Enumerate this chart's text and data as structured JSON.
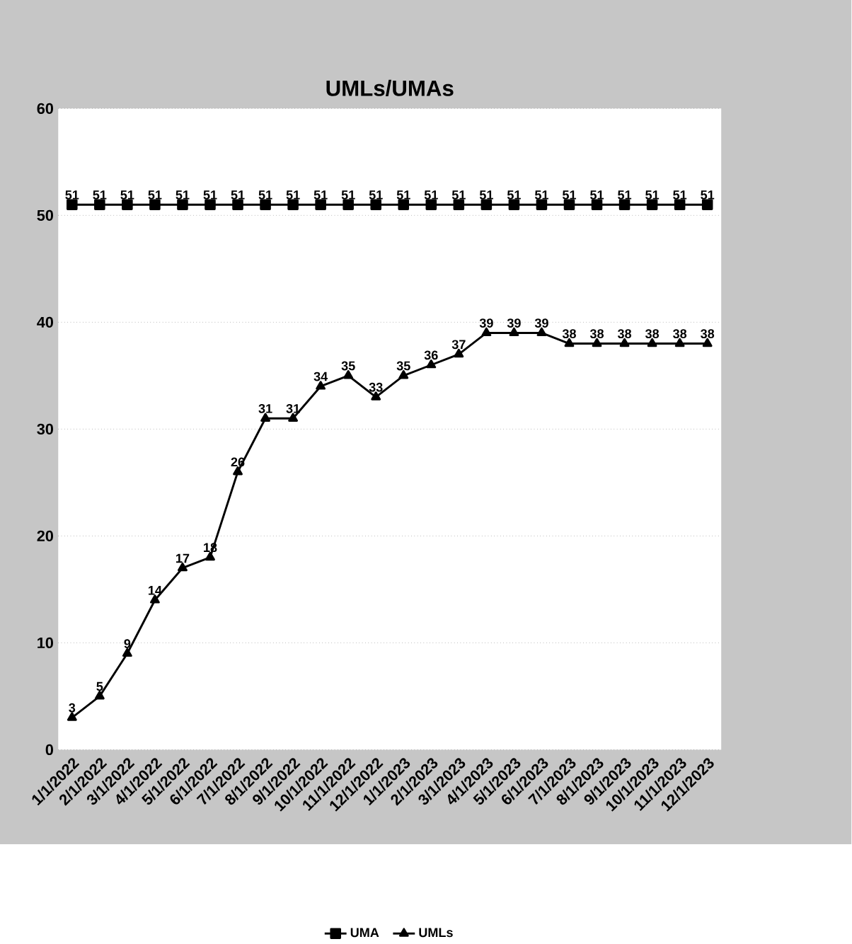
{
  "chart_data": {
    "type": "line",
    "title": "UMLs/UMAs",
    "categories": [
      "1/1/2022",
      "2/1/2022",
      "3/1/2022",
      "4/1/2022",
      "5/1/2022",
      "6/1/2022",
      "7/1/2022",
      "8/1/2022",
      "9/1/2022",
      "10/1/2022",
      "11/1/2022",
      "12/1/2022",
      "1/1/2023",
      "2/1/2023",
      "3/1/2023",
      "4/1/2023",
      "5/1/2023",
      "6/1/2023",
      "7/1/2023",
      "8/1/2023",
      "9/1/2023",
      "10/1/2023",
      "11/1/2023",
      "12/1/2023"
    ],
    "series": [
      {
        "name": "UMA",
        "color": "#000000",
        "marker": "square",
        "values": [
          51,
          51,
          51,
          51,
          51,
          51,
          51,
          51,
          51,
          51,
          51,
          51,
          51,
          51,
          51,
          51,
          51,
          51,
          51,
          51,
          51,
          51,
          51,
          51
        ]
      },
      {
        "name": "UMLs",
        "color": "#000000",
        "marker": "triangle",
        "values": [
          3,
          5,
          9,
          14,
          17,
          18,
          26,
          31,
          31,
          34,
          35,
          33,
          35,
          36,
          37,
          39,
          39,
          39,
          38,
          38,
          38,
          38,
          38,
          38
        ]
      }
    ],
    "ylim": [
      0,
      60
    ],
    "yticks": [
      0,
      10,
      20,
      30,
      40,
      50,
      60
    ],
    "grid": "y",
    "legend": "bottom",
    "data_labels": true
  }
}
